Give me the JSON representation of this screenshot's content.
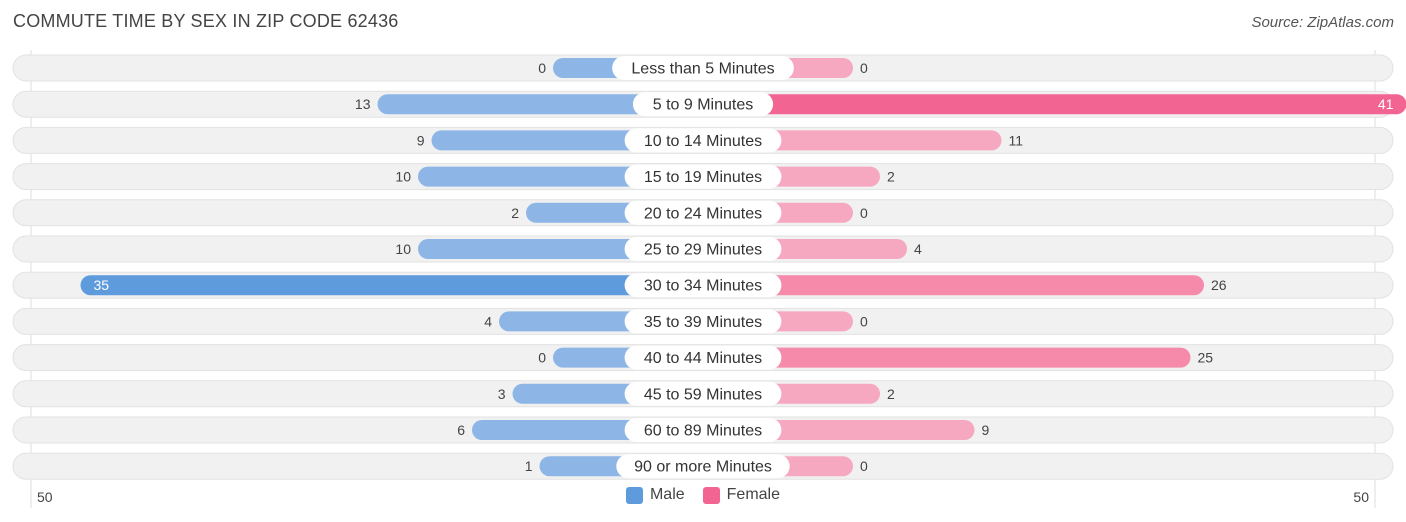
{
  "header": {
    "title": "COMMUTE TIME BY SEX IN ZIP CODE 62436",
    "source": "Source: ZipAtlas.com"
  },
  "colors": {
    "male": "#8db6e6",
    "male_strong": "#5e9bdc",
    "female": "#f6a8c1",
    "female_strong": "#f26592",
    "track": "#f1f1f1"
  },
  "chart_data": {
    "type": "bar",
    "orientation": "horizontal-diverging",
    "categories": [
      "Less than 5 Minutes",
      "5 to 9 Minutes",
      "10 to 14 Minutes",
      "15 to 19 Minutes",
      "20 to 24 Minutes",
      "25 to 29 Minutes",
      "30 to 34 Minutes",
      "35 to 39 Minutes",
      "40 to 44 Minutes",
      "45 to 59 Minutes",
      "60 to 89 Minutes",
      "90 or more Minutes"
    ],
    "series": [
      {
        "name": "Male",
        "values": [
          0,
          13,
          9,
          10,
          2,
          10,
          35,
          4,
          0,
          3,
          6,
          1
        ]
      },
      {
        "name": "Female",
        "values": [
          0,
          41,
          11,
          2,
          0,
          4,
          26,
          0,
          25,
          2,
          9,
          0
        ]
      }
    ],
    "xlim": [
      -50,
      50
    ],
    "axis_min_label": "50",
    "axis_max_label": "50",
    "legend_position": "bottom-center"
  }
}
